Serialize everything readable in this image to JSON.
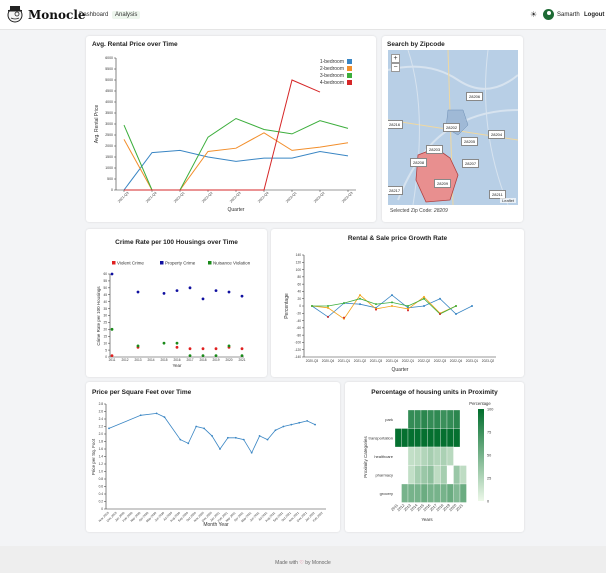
{
  "nav": {
    "brand": "Monocle",
    "links": [
      "Dashboard",
      "Analysis"
    ],
    "active": "Analysis",
    "username": "Samarth",
    "logout": "Logout",
    "theme_icon": "sun-icon"
  },
  "rental_card": {
    "title": "Avg. Rental Price over Time",
    "chart_data": {
      "type": "line",
      "title": "",
      "xlabel": "Quarter",
      "ylabel": "Avg. Rental Price",
      "ylim": [
        0,
        6000
      ],
      "y_ticks": [
        "0",
        "500",
        "1000",
        "1500",
        "2000",
        "2500",
        "3000",
        "3500",
        "4000",
        "4500",
        "5000",
        "5500",
        "6000"
      ],
      "categories": [
        "2021-Q3",
        "2021-Q4",
        "2022-Q1",
        "2022-Q2",
        "2022-Q3",
        "2022-Q4",
        "2023-Q1",
        "2023-Q2",
        "2023-Q3"
      ],
      "series": [
        {
          "name": "1-bedroom",
          "color": "#3a86c4",
          "values": [
            0,
            1700,
            1800,
            1500,
            1300,
            1450,
            1450,
            1750,
            1550
          ]
        },
        {
          "name": "2-bedroom",
          "color": "#f28e2b",
          "values": [
            2300,
            0,
            0,
            1750,
            1900,
            2600,
            1800,
            1950,
            2150
          ]
        },
        {
          "name": "3-bedroom",
          "color": "#3cae3c",
          "values": [
            2950,
            0,
            0,
            2400,
            3250,
            2750,
            2550,
            3150,
            2800
          ]
        },
        {
          "name": "4-bedroom",
          "color": "#d62728",
          "values": [
            0,
            0,
            0,
            0,
            0,
            0,
            5000,
            4450,
            null
          ]
        }
      ]
    }
  },
  "map_card": {
    "title": "Search by Zipcode",
    "zoom_in": "+",
    "zoom_out": "−",
    "selected_label": "Selected Zip Code:",
    "selected_zip": "28209",
    "attribution": "Leaflet",
    "zip_labels": [
      "28206",
      "28216",
      "28202",
      "28204",
      "28205",
      "28203",
      "28207",
      "28208",
      "28209",
      "28211",
      "28217"
    ]
  },
  "crime_card": {
    "title": "Crime Rate per 100 Housings over Time",
    "chart_data": {
      "type": "scatter",
      "xlabel": "Year",
      "ylabel": "Crime Rate per 100 Housings",
      "ylim": [
        0,
        60
      ],
      "y_ticks": [
        "0",
        "5",
        "10",
        "15",
        "20",
        "25",
        "30",
        "35",
        "40",
        "45",
        "50",
        "55",
        "60"
      ],
      "categories": [
        "2011",
        "2012",
        "2013",
        "2014",
        "2015",
        "2016",
        "2017",
        "2018",
        "2019",
        "2020",
        "2021"
      ],
      "series": [
        {
          "name": "Violent Crime",
          "color": "#e02020",
          "values": [
            1,
            null,
            7,
            null,
            null,
            7,
            6,
            6,
            6,
            7,
            6
          ]
        },
        {
          "name": "Property Crime",
          "color": "#1010a0",
          "values": [
            60,
            null,
            47,
            null,
            46,
            48,
            50,
            42,
            48,
            47,
            44
          ]
        },
        {
          "name": "Nuisance Violation",
          "color": "#1a8a1a",
          "values": [
            20,
            null,
            8,
            null,
            10,
            10,
            1,
            1,
            1,
            8,
            1
          ]
        }
      ]
    }
  },
  "growth_card": {
    "title": "Rental & Sale price Growth Rate",
    "chart_data": {
      "type": "line",
      "xlabel": "Quarter",
      "ylabel": "Percentage",
      "ylim": [
        -140,
        140
      ],
      "y_ticks": [
        "140",
        "120",
        "100",
        "80",
        "60",
        "40",
        "20",
        "0",
        "-20",
        "-40",
        "-60",
        "-80",
        "-100",
        "-120",
        "-140"
      ],
      "categories": [
        "2020-Q3",
        "2020-Q4",
        "2021-Q1",
        "2021-Q2",
        "2021-Q3",
        "2021-Q4",
        "2022-Q1",
        "2022-Q2",
        "2022-Q3",
        "2022-Q4",
        "2023-Q1",
        "2023-Q2"
      ],
      "series": [
        {
          "name": "",
          "color": "#3a86c4",
          "values": [
            0,
            -30,
            8,
            5,
            -5,
            30,
            -5,
            0,
            20,
            -22,
            0,
            null
          ]
        },
        {
          "name": "",
          "color": "#f2a31b",
          "values": [
            0,
            -5,
            -35,
            30,
            -8,
            0,
            -8,
            25,
            -20,
            0,
            null,
            null
          ]
        },
        {
          "name": "",
          "color": "#3cae3c",
          "values": [
            0,
            0,
            8,
            20,
            5,
            10,
            0,
            20,
            -22,
            0,
            null,
            null
          ]
        },
        {
          "name": "",
          "color": "#d62728",
          "values": [
            null,
            -30,
            -32,
            null,
            -10,
            null,
            -12,
            null,
            -22,
            null,
            null,
            null
          ]
        }
      ]
    }
  },
  "sqft_card": {
    "title": "Price per Square Feet over Time",
    "chart_data": {
      "type": "line",
      "xlabel": "Month Year",
      "ylabel": "Price per Sq. Foot",
      "ylim": [
        0,
        2.8
      ],
      "y_ticks": [
        "0",
        "0.2",
        "0.4",
        "0.6",
        "0.8",
        "1.0",
        "1.2",
        "1.4",
        "1.6",
        "1.8",
        "2.0",
        "2.2",
        "2.4",
        "2.6",
        "2.8"
      ],
      "categories": [
        "Nov 2019",
        "Dec 2019",
        "Jan 2020",
        "Feb 2020",
        "Mar 2020",
        "Apr 2020",
        "May 2020",
        "Jun 2020",
        "Jul 2020",
        "Aug 2020",
        "Sep 2020",
        "Oct 2020",
        "Nov 2020",
        "Dec 2020",
        "Jan 2021",
        "Feb 2021",
        "Mar 2021",
        "Apr 2021",
        "May 2021",
        "Jun 2021",
        "Jul 2021",
        "Aug 2021",
        "Sep 2021",
        "Oct 2021",
        "Nov 2021",
        "Dec 2021",
        "Jan 2022",
        "Feb 2022"
      ],
      "series": [
        {
          "name": "",
          "color": "#3a86c4",
          "values": [
            2.15,
            null,
            null,
            null,
            2.5,
            null,
            2.55,
            2.45,
            null,
            1.85,
            1.75,
            2.2,
            2.15,
            1.95,
            1.6,
            1.9,
            1.9,
            1.85,
            1.5,
            1.95,
            1.85,
            2.1,
            2.2,
            2.25,
            2.3,
            2.35,
            2.25,
            null
          ]
        }
      ]
    }
  },
  "heatmap_card": {
    "title": "Percentage of housing units in Proximity",
    "chart_data": {
      "type": "heatmap",
      "xlabel": "Years",
      "ylabel": "Proximity Categories",
      "legend_title": "Percentage",
      "legend_ticks": [
        "100",
        "75",
        "50",
        "25",
        "0"
      ],
      "categories": [
        "2011",
        "2012",
        "2013",
        "2014",
        "2015",
        "2016",
        "2017",
        "2018",
        "2019",
        "2020",
        "2021"
      ],
      "rows": [
        "park",
        "transportation",
        "healthcare",
        "pharmacy",
        "grocery"
      ],
      "values": [
        [
          null,
          null,
          78,
          78,
          82,
          78,
          80,
          75,
          78,
          82,
          null
        ],
        [
          98,
          98,
          98,
          98,
          98,
          98,
          98,
          98,
          98,
          98,
          null
        ],
        [
          null,
          null,
          18,
          20,
          25,
          30,
          25,
          28,
          22,
          null,
          null
        ],
        [
          null,
          null,
          18,
          30,
          35,
          40,
          20,
          30,
          null,
          35,
          20
        ],
        [
          null,
          50,
          50,
          50,
          55,
          50,
          50,
          50,
          55,
          45,
          55
        ]
      ]
    }
  },
  "footer": {
    "prefix": "Made with",
    "suffix": "by Monocle",
    "heart_icon": "heart-icon"
  }
}
